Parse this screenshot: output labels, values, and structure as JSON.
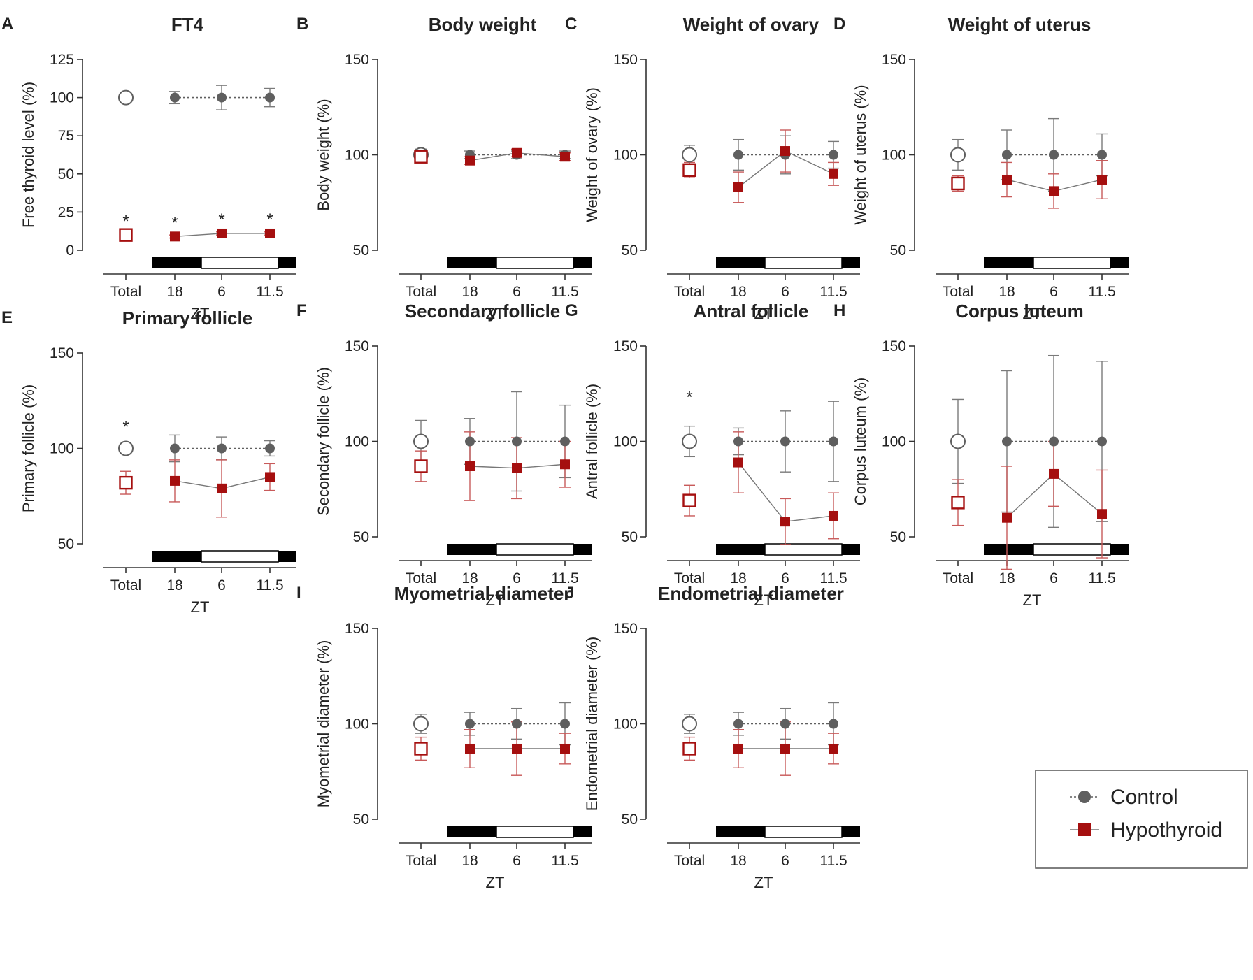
{
  "chart_data": [
    {
      "id": "A",
      "letter": "A",
      "title": "FT4",
      "type": "scatter",
      "ylabel": "Free thyroid level (%)",
      "xlabel": "ZT",
      "ylim": [
        0,
        125
      ],
      "yticks": [
        0,
        25,
        50,
        75,
        100,
        125
      ],
      "categories": [
        "Total",
        "18",
        "6",
        "11.5"
      ],
      "series": [
        {
          "name": "Control",
          "values": [
            100,
            100,
            100,
            100
          ],
          "err": [
            0,
            4,
            8,
            6
          ]
        },
        {
          "name": "Hypothyroid",
          "values": [
            10,
            9,
            11,
            11
          ],
          "err": [
            1,
            1,
            1,
            1
          ]
        }
      ],
      "stars": [
        {
          "index": 0,
          "label": "*",
          "value": 20
        },
        {
          "index": 1,
          "label": "*",
          "value": 19
        },
        {
          "index": 2,
          "label": "*",
          "value": 21
        },
        {
          "index": 3,
          "label": "*",
          "value": 21
        }
      ]
    },
    {
      "id": "B",
      "letter": "B",
      "title": "Body weight",
      "type": "scatter",
      "ylabel": "Body weight (%)",
      "xlabel": "ZT",
      "ylim": [
        50,
        150
      ],
      "yticks": [
        50,
        100,
        150
      ],
      "categories": [
        "Total",
        "18",
        "6",
        "11.5"
      ],
      "series": [
        {
          "name": "Control",
          "values": [
            100,
            100,
            100,
            100
          ],
          "err": [
            3,
            2,
            2,
            2
          ]
        },
        {
          "name": "Hypothyroid",
          "values": [
            99,
            97,
            101,
            99
          ],
          "err": [
            3,
            2,
            2,
            2
          ]
        }
      ],
      "stars": []
    },
    {
      "id": "C",
      "letter": "C",
      "title": "Weight of ovary",
      "type": "scatter",
      "ylabel": "Weight of ovary (%)",
      "xlabel": "ZT",
      "ylim": [
        50,
        150
      ],
      "yticks": [
        50,
        100,
        150
      ],
      "categories": [
        "Total",
        "18",
        "6",
        "11.5"
      ],
      "series": [
        {
          "name": "Control",
          "values": [
            100,
            100,
            100,
            100
          ],
          "err": [
            5,
            8,
            10,
            7
          ]
        },
        {
          "name": "Hypothyroid",
          "values": [
            92,
            83,
            102,
            90
          ],
          "err": [
            4,
            8,
            11,
            6
          ]
        }
      ],
      "stars": []
    },
    {
      "id": "D",
      "letter": "D",
      "title": "Weight of uterus",
      "type": "scatter",
      "ylabel": "Weight of uterus (%)",
      "xlabel": "ZT",
      "ylim": [
        50,
        150
      ],
      "yticks": [
        50,
        100,
        150
      ],
      "categories": [
        "Total",
        "18",
        "6",
        "11.5"
      ],
      "series": [
        {
          "name": "Control",
          "values": [
            100,
            100,
            100,
            100
          ],
          "err": [
            8,
            13,
            19,
            11
          ]
        },
        {
          "name": "Hypothyroid",
          "values": [
            85,
            87,
            81,
            87
          ],
          "err": [
            4,
            9,
            9,
            10
          ]
        }
      ],
      "stars": []
    },
    {
      "id": "E",
      "letter": "E",
      "title": "Primary follicle",
      "type": "scatter",
      "ylabel": "Primary follicle (%)",
      "xlabel": "ZT",
      "ylim": [
        50,
        150
      ],
      "yticks": [
        50,
        100,
        150
      ],
      "categories": [
        "Total",
        "18",
        "6",
        "11.5"
      ],
      "series": [
        {
          "name": "Control",
          "values": [
            100,
            100,
            100,
            100
          ],
          "err": [
            0,
            7,
            6,
            4
          ]
        },
        {
          "name": "Hypothyroid",
          "values": [
            82,
            83,
            79,
            85
          ],
          "err": [
            6,
            11,
            15,
            7
          ]
        }
      ],
      "stars": [
        {
          "index": 0,
          "label": "*",
          "value": 112
        }
      ]
    },
    {
      "id": "F",
      "letter": "F",
      "title": "Secondary follicle",
      "type": "scatter",
      "ylabel": "Secondary follicle (%)",
      "xlabel": "ZT",
      "ylim": [
        50,
        150
      ],
      "yticks": [
        50,
        100,
        150
      ],
      "categories": [
        "Total",
        "18",
        "6",
        "11.5"
      ],
      "series": [
        {
          "name": "Control",
          "values": [
            100,
            100,
            100,
            100
          ],
          "err": [
            11,
            12,
            26,
            19
          ]
        },
        {
          "name": "Hypothyroid",
          "values": [
            87,
            87,
            86,
            88
          ],
          "err": [
            8,
            18,
            16,
            12
          ]
        }
      ],
      "stars": []
    },
    {
      "id": "G",
      "letter": "G",
      "title": "Antral follicle",
      "type": "scatter",
      "ylabel": "Antral follicle (%)",
      "xlabel": "ZT",
      "ylim": [
        50,
        150
      ],
      "yticks": [
        50,
        100,
        150
      ],
      "categories": [
        "Total",
        "18",
        "6",
        "11.5"
      ],
      "series": [
        {
          "name": "Control",
          "values": [
            100,
            100,
            100,
            100
          ],
          "err": [
            8,
            7,
            16,
            21
          ]
        },
        {
          "name": "Hypothyroid",
          "values": [
            69,
            89,
            58,
            61
          ],
          "err": [
            8,
            16,
            12,
            12
          ]
        }
      ],
      "stars": [
        {
          "index": 0,
          "label": "*",
          "value": 124
        }
      ]
    },
    {
      "id": "H",
      "letter": "H",
      "title": "Corpus luteum",
      "type": "scatter",
      "ylabel": "Corpus luteum (%)",
      "xlabel": "ZT",
      "ylim": [
        50,
        150
      ],
      "yticks": [
        50,
        100,
        150
      ],
      "categories": [
        "Total",
        "18",
        "6",
        "11.5"
      ],
      "series": [
        {
          "name": "Control",
          "values": [
            100,
            100,
            100,
            100
          ],
          "err": [
            22,
            37,
            45,
            42
          ]
        },
        {
          "name": "Hypothyroid",
          "values": [
            68,
            60,
            83,
            62
          ],
          "err": [
            12,
            27,
            17,
            23
          ]
        }
      ],
      "stars": []
    },
    {
      "id": "I",
      "letter": "I",
      "title": "Myometrial diameter",
      "type": "scatter",
      "ylabel": "Myometrial diameter (%)",
      "xlabel": "ZT",
      "ylim": [
        50,
        150
      ],
      "yticks": [
        50,
        100,
        150
      ],
      "categories": [
        "Total",
        "18",
        "6",
        "11.5"
      ],
      "series": [
        {
          "name": "Control",
          "values": [
            100,
            100,
            100,
            100
          ],
          "err": [
            5,
            6,
            8,
            11
          ]
        },
        {
          "name": "Hypothyroid",
          "values": [
            87,
            87,
            87,
            87
          ],
          "err": [
            6,
            10,
            14,
            8
          ]
        }
      ],
      "stars": []
    },
    {
      "id": "J",
      "letter": "J",
      "title": "Endometrial diameter",
      "type": "scatter",
      "ylabel": "Endometrial diameter (%)",
      "xlabel": "ZT",
      "ylim": [
        50,
        150
      ],
      "yticks": [
        50,
        100,
        150
      ],
      "categories": [
        "Total",
        "18",
        "6",
        "11.5"
      ],
      "series": [
        {
          "name": "Control",
          "values": [
            100,
            100,
            100,
            100
          ],
          "err": [
            5,
            6,
            8,
            11
          ]
        },
        {
          "name": "Hypothyroid",
          "values": [
            87,
            87,
            87,
            87
          ],
          "err": [
            6,
            10,
            14,
            8
          ]
        }
      ],
      "stars": []
    }
  ],
  "legend": {
    "items": [
      {
        "label": "Control",
        "color": "#5f5f5f",
        "marker": "circle"
      },
      {
        "label": "Hypothyroid",
        "color": "#a50f0f",
        "marker": "square"
      }
    ]
  },
  "colors": {
    "control": "#5f5f5f",
    "control_open": "#5f5f5f",
    "hypo": "#a50f0f",
    "hypo_error": "#c85a5a",
    "axis": "#333333"
  }
}
